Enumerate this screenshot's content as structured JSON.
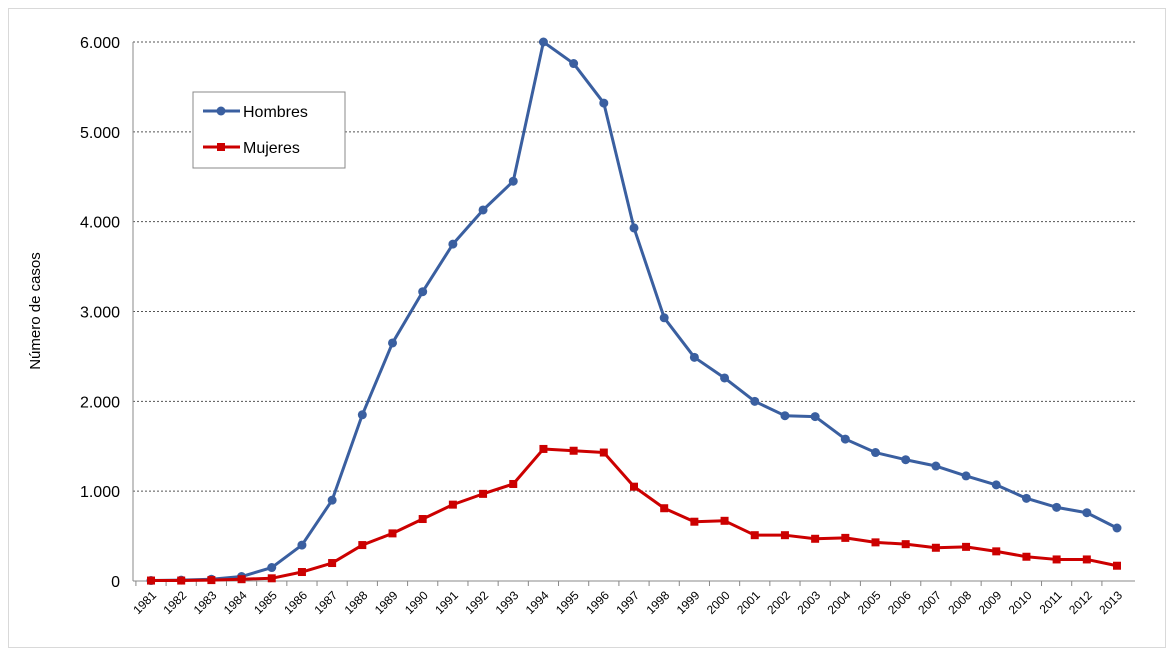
{
  "chart_data": {
    "type": "line",
    "title": "",
    "xlabel": "",
    "ylabel": "Número de casos",
    "ylim": [
      0,
      6000
    ],
    "yticks": [
      "0",
      "1.000",
      "2.000",
      "3.000",
      "4.000",
      "5.000",
      "6.000"
    ],
    "ytick_values": [
      0,
      1000,
      2000,
      3000,
      4000,
      5000,
      6000
    ],
    "categories": [
      "1981",
      "1982",
      "1983",
      "1984",
      "1985",
      "1986",
      "1987",
      "1988",
      "1989",
      "1990",
      "1991",
      "1992",
      "1993",
      "1994",
      "1995",
      "1996",
      "1997",
      "1998",
      "1999",
      "2000",
      "2001",
      "2002",
      "2003",
      "2004",
      "2005",
      "2006",
      "2007",
      "2008",
      "2009",
      "2010",
      "2011",
      "2012",
      "2013"
    ],
    "grid": true,
    "legend_position": "top-left",
    "series": [
      {
        "name": "Hombres",
        "color": "#3a5fa0",
        "marker": "circle",
        "values": [
          5,
          10,
          20,
          50,
          150,
          400,
          900,
          1850,
          2650,
          3220,
          3750,
          4130,
          4450,
          6000,
          5760,
          5320,
          3930,
          2930,
          2490,
          2260,
          2000,
          1840,
          1830,
          1580,
          1430,
          1350,
          1280,
          1170,
          1070,
          920,
          820,
          760,
          590
        ]
      },
      {
        "name": "Mujeres",
        "color": "#cc0000",
        "marker": "square",
        "values": [
          5,
          5,
          10,
          20,
          30,
          100,
          200,
          400,
          530,
          690,
          850,
          970,
          1080,
          1470,
          1450,
          1430,
          1050,
          810,
          660,
          670,
          510,
          510,
          470,
          480,
          430,
          410,
          370,
          380,
          330,
          270,
          240,
          240,
          170
        ]
      }
    ]
  }
}
